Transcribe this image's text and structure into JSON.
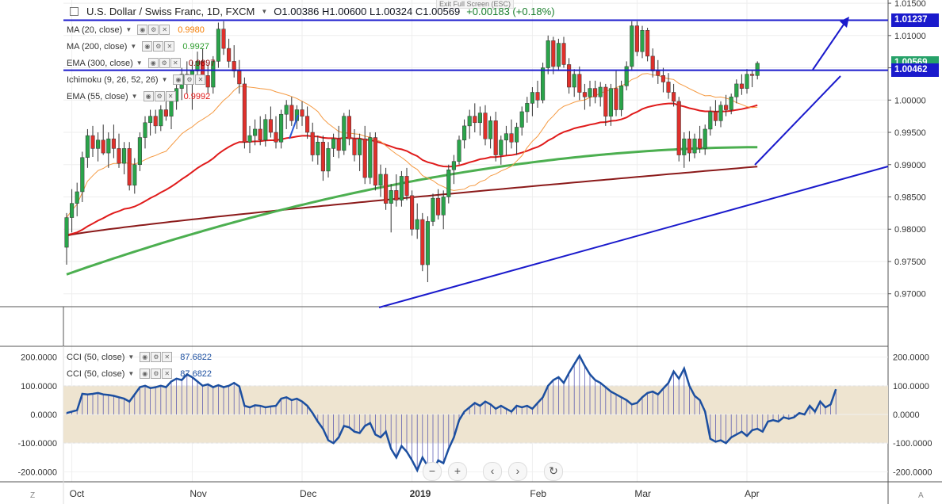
{
  "header": {
    "symbol": "U.S. Dollar / Swiss Franc, 1D, FXCM",
    "ohlc": "O1.00386  H1.00600  L1.00324  C1.00569",
    "change": "+0.00183 (+0.18%)",
    "exit_fullscreen": "Exit Full Screen (ESC)"
  },
  "indicators": [
    {
      "label": "MA (20, close)",
      "value": "0.9980",
      "color": "#f57c00"
    },
    {
      "label": "MA (200, close)",
      "value": "0.9927",
      "color": "#2e9e2e"
    },
    {
      "label": "EMA (300, close)",
      "value": "0.9897",
      "color": "#8b0000"
    },
    {
      "label": "Ichimoku (9, 26, 52, 26)",
      "value": "",
      "color": "#999999"
    },
    {
      "label": "EMA (55, close)",
      "value": "0.9992",
      "color": "#e01b1b"
    }
  ],
  "cci_legend": [
    {
      "label": "CCI (50, close)",
      "value": "87.6822"
    },
    {
      "label": "CCI (50, close)",
      "value": "87.6822"
    }
  ],
  "price_tags": [
    {
      "value": "1.01237",
      "color": "#1a1acc"
    },
    {
      "value": "1.00569",
      "color": "#26a269"
    },
    {
      "value": "1.00462",
      "color": "#1a1acc"
    }
  ],
  "corners": {
    "left": "Z",
    "right": "A"
  },
  "chart_data": {
    "type": "candlestick",
    "symbol": "USD/CHF",
    "interval": "1D",
    "price_axis": {
      "min": 0.968,
      "max": 1.0155,
      "ticks": [
        "0.97000",
        "0.97500",
        "0.98000",
        "0.98500",
        "0.99000",
        "0.99500",
        "1.00000",
        "1.00500",
        "1.01000",
        "1.01500"
      ]
    },
    "x_ticks": [
      {
        "label": "Oct",
        "i": 1
      },
      {
        "label": "Nov",
        "i": 24
      },
      {
        "label": "Dec",
        "i": 45
      },
      {
        "label": "2019",
        "i": 66
      },
      {
        "label": "Feb",
        "i": 89
      },
      {
        "label": "Mar",
        "i": 109
      },
      {
        "label": "Apr",
        "i": 130
      }
    ],
    "horizontal_levels": [
      1.01237,
      1.00462
    ],
    "candles": [
      {
        "o": 0.9772,
        "h": 0.9825,
        "l": 0.9745,
        "c": 0.9818
      },
      {
        "o": 0.9818,
        "h": 0.9862,
        "l": 0.9795,
        "c": 0.984
      },
      {
        "o": 0.984,
        "h": 0.9872,
        "l": 0.982,
        "c": 0.9858
      },
      {
        "o": 0.9858,
        "h": 0.992,
        "l": 0.9842,
        "c": 0.9911
      },
      {
        "o": 0.9911,
        "h": 0.9955,
        "l": 0.9895,
        "c": 0.9945
      },
      {
        "o": 0.9945,
        "h": 0.996,
        "l": 0.9912,
        "c": 0.9925
      },
      {
        "o": 0.9925,
        "h": 0.995,
        "l": 0.9905,
        "c": 0.9938
      },
      {
        "o": 0.9938,
        "h": 0.9962,
        "l": 0.9915,
        "c": 0.9918
      },
      {
        "o": 0.9918,
        "h": 0.995,
        "l": 0.9895,
        "c": 0.994
      },
      {
        "o": 0.994,
        "h": 0.9962,
        "l": 0.991,
        "c": 0.9925
      },
      {
        "o": 0.9925,
        "h": 0.9948,
        "l": 0.9895,
        "c": 0.9902
      },
      {
        "o": 0.9902,
        "h": 0.9935,
        "l": 0.9885,
        "c": 0.9925
      },
      {
        "o": 0.9925,
        "h": 0.9935,
        "l": 0.986,
        "c": 0.9868
      },
      {
        "o": 0.9868,
        "h": 0.991,
        "l": 0.9855,
        "c": 0.99
      },
      {
        "o": 0.99,
        "h": 0.995,
        "l": 0.989,
        "c": 0.9942
      },
      {
        "o": 0.9942,
        "h": 0.9975,
        "l": 0.9925,
        "c": 0.9965
      },
      {
        "o": 0.9965,
        "h": 0.9985,
        "l": 0.9945,
        "c": 0.9975
      },
      {
        "o": 0.9975,
        "h": 0.9985,
        "l": 0.9948,
        "c": 0.996
      },
      {
        "o": 0.996,
        "h": 0.9992,
        "l": 0.9952,
        "c": 0.9985
      },
      {
        "o": 0.9985,
        "h": 1.001,
        "l": 0.9968,
        "c": 0.9975
      },
      {
        "o": 0.9975,
        "h": 1.0005,
        "l": 0.9955,
        "c": 0.9998
      },
      {
        "o": 0.9998,
        "h": 1.003,
        "l": 0.9985,
        "c": 1.0018
      },
      {
        "o": 1.0018,
        "h": 1.005,
        "l": 1.0,
        "c": 1.004
      },
      {
        "o": 1.004,
        "h": 1.006,
        "l": 1.001,
        "c": 1.0025
      },
      {
        "o": 1.0025,
        "h": 1.006,
        "l": 0.9985,
        "c": 1.0045
      },
      {
        "o": 1.0045,
        "h": 1.0075,
        "l": 1.0025,
        "c": 1.006
      },
      {
        "o": 1.006,
        "h": 1.008,
        "l": 1.003,
        "c": 1.0038
      },
      {
        "o": 1.0038,
        "h": 1.0055,
        "l": 1.001,
        "c": 1.002
      },
      {
        "o": 1.002,
        "h": 1.0068,
        "l": 1.001,
        "c": 1.006
      },
      {
        "o": 1.006,
        "h": 1.012,
        "l": 1.005,
        "c": 1.011
      },
      {
        "o": 1.011,
        "h": 1.0122,
        "l": 1.007,
        "c": 1.008
      },
      {
        "o": 1.008,
        "h": 1.0095,
        "l": 1.005,
        "c": 1.006
      },
      {
        "o": 1.006,
        "h": 1.0085,
        "l": 1.0035,
        "c": 1.0045
      },
      {
        "o": 1.0045,
        "h": 1.0062,
        "l": 1.001,
        "c": 1.0025
      },
      {
        "o": 1.0025,
        "h": 1.0035,
        "l": 0.9925,
        "c": 0.9935
      },
      {
        "o": 0.9935,
        "h": 0.996,
        "l": 0.9918,
        "c": 0.9945
      },
      {
        "o": 0.9945,
        "h": 0.997,
        "l": 0.993,
        "c": 0.9955
      },
      {
        "o": 0.9955,
        "h": 0.9975,
        "l": 0.993,
        "c": 0.9938
      },
      {
        "o": 0.9938,
        "h": 0.9978,
        "l": 0.9928,
        "c": 0.997
      },
      {
        "o": 0.997,
        "h": 0.999,
        "l": 0.9942,
        "c": 0.995
      },
      {
        "o": 0.995,
        "h": 0.9975,
        "l": 0.9925,
        "c": 0.9935
      },
      {
        "o": 0.9935,
        "h": 0.9985,
        "l": 0.9925,
        "c": 0.9978
      },
      {
        "o": 0.9978,
        "h": 1.0,
        "l": 0.9955,
        "c": 0.9992
      },
      {
        "o": 0.9992,
        "h": 1.0005,
        "l": 0.996,
        "c": 0.9968
      },
      {
        "o": 0.9968,
        "h": 0.9992,
        "l": 0.9955,
        "c": 0.9985
      },
      {
        "o": 0.9985,
        "h": 0.9998,
        "l": 0.996,
        "c": 0.9975
      },
      {
        "o": 0.9975,
        "h": 0.999,
        "l": 0.994,
        "c": 0.995
      },
      {
        "o": 0.995,
        "h": 0.9965,
        "l": 0.9905,
        "c": 0.9915
      },
      {
        "o": 0.9915,
        "h": 0.9945,
        "l": 0.99,
        "c": 0.9935
      },
      {
        "o": 0.9935,
        "h": 0.9945,
        "l": 0.9875,
        "c": 0.989
      },
      {
        "o": 0.989,
        "h": 0.9935,
        "l": 0.988,
        "c": 0.9925
      },
      {
        "o": 0.9925,
        "h": 0.9948,
        "l": 0.9912,
        "c": 0.994
      },
      {
        "o": 0.994,
        "h": 0.996,
        "l": 0.991,
        "c": 0.9922
      },
      {
        "o": 0.9922,
        "h": 0.998,
        "l": 0.9915,
        "c": 0.9975
      },
      {
        "o": 0.9975,
        "h": 0.9985,
        "l": 0.993,
        "c": 0.994
      },
      {
        "o": 0.994,
        "h": 0.9955,
        "l": 0.9905,
        "c": 0.9915
      },
      {
        "o": 0.9915,
        "h": 0.9948,
        "l": 0.989,
        "c": 0.994
      },
      {
        "o": 0.994,
        "h": 0.996,
        "l": 0.987,
        "c": 0.988
      },
      {
        "o": 0.988,
        "h": 0.995,
        "l": 0.987,
        "c": 0.9942
      },
      {
        "o": 0.9942,
        "h": 0.995,
        "l": 0.986,
        "c": 0.9868
      },
      {
        "o": 0.9868,
        "h": 0.99,
        "l": 0.985,
        "c": 0.9885
      },
      {
        "o": 0.9885,
        "h": 0.9895,
        "l": 0.983,
        "c": 0.984
      },
      {
        "o": 0.984,
        "h": 0.987,
        "l": 0.9795,
        "c": 0.986
      },
      {
        "o": 0.986,
        "h": 0.9885,
        "l": 0.9835,
        "c": 0.9845
      },
      {
        "o": 0.9845,
        "h": 0.989,
        "l": 0.9835,
        "c": 0.9882
      },
      {
        "o": 0.9882,
        "h": 0.9895,
        "l": 0.9845,
        "c": 0.9852
      },
      {
        "o": 0.9852,
        "h": 0.986,
        "l": 0.979,
        "c": 0.98
      },
      {
        "o": 0.98,
        "h": 0.984,
        "l": 0.9785,
        "c": 0.9815
      },
      {
        "o": 0.9815,
        "h": 0.9825,
        "l": 0.9735,
        "c": 0.9745
      },
      {
        "o": 0.9745,
        "h": 0.982,
        "l": 0.9718,
        "c": 0.9812
      },
      {
        "o": 0.9812,
        "h": 0.9855,
        "l": 0.9805,
        "c": 0.9848
      },
      {
        "o": 0.9848,
        "h": 0.9862,
        "l": 0.9815,
        "c": 0.9822
      },
      {
        "o": 0.9822,
        "h": 0.986,
        "l": 0.98,
        "c": 0.985
      },
      {
        "o": 0.985,
        "h": 0.99,
        "l": 0.984,
        "c": 0.9892
      },
      {
        "o": 0.9892,
        "h": 0.9915,
        "l": 0.987,
        "c": 0.9905
      },
      {
        "o": 0.9905,
        "h": 0.9945,
        "l": 0.99,
        "c": 0.9938
      },
      {
        "o": 0.9938,
        "h": 0.997,
        "l": 0.9925,
        "c": 0.996
      },
      {
        "o": 0.996,
        "h": 0.9985,
        "l": 0.994,
        "c": 0.9975
      },
      {
        "o": 0.9975,
        "h": 0.9995,
        "l": 0.995,
        "c": 0.9965
      },
      {
        "o": 0.9965,
        "h": 0.999,
        "l": 0.9945,
        "c": 0.998
      },
      {
        "o": 0.998,
        "h": 0.9992,
        "l": 0.993,
        "c": 0.994
      },
      {
        "o": 0.994,
        "h": 0.9975,
        "l": 0.9925,
        "c": 0.9968
      },
      {
        "o": 0.9968,
        "h": 0.9982,
        "l": 0.9905,
        "c": 0.9915
      },
      {
        "o": 0.9915,
        "h": 0.9945,
        "l": 0.99,
        "c": 0.9938
      },
      {
        "o": 0.9938,
        "h": 0.996,
        "l": 0.9915,
        "c": 0.9948
      },
      {
        "o": 0.9948,
        "h": 0.997,
        "l": 0.9925,
        "c": 0.9935
      },
      {
        "o": 0.9935,
        "h": 0.9965,
        "l": 0.9915,
        "c": 0.9958
      },
      {
        "o": 0.9958,
        "h": 0.999,
        "l": 0.9945,
        "c": 0.9982
      },
      {
        "o": 0.9982,
        "h": 1.0005,
        "l": 0.9965,
        "c": 0.9995
      },
      {
        "o": 0.9995,
        "h": 1.002,
        "l": 0.9975,
        "c": 1.0012
      },
      {
        "o": 1.0012,
        "h": 1.003,
        "l": 0.9988,
        "c": 1.0
      },
      {
        "o": 1.0,
        "h": 1.0058,
        "l": 0.9995,
        "c": 1.005
      },
      {
        "o": 1.005,
        "h": 1.01,
        "l": 1.004,
        "c": 1.0092
      },
      {
        "o": 1.0092,
        "h": 1.0098,
        "l": 1.004,
        "c": 1.0052
      },
      {
        "o": 1.0052,
        "h": 1.0095,
        "l": 1.0045,
        "c": 1.0088
      },
      {
        "o": 1.0088,
        "h": 1.0098,
        "l": 1.005,
        "c": 1.0055
      },
      {
        "o": 1.0055,
        "h": 1.0065,
        "l": 1.001,
        "c": 1.002
      },
      {
        "o": 1.002,
        "h": 1.0048,
        "l": 1.0005,
        "c": 1.004
      },
      {
        "o": 1.004,
        "h": 1.0052,
        "l": 1.0,
        "c": 1.0012
      },
      {
        "o": 1.0012,
        "h": 1.0025,
        "l": 0.9985,
        "c": 1.0005
      },
      {
        "o": 1.0005,
        "h": 1.003,
        "l": 0.999,
        "c": 1.0018
      },
      {
        "o": 1.0018,
        "h": 1.003,
        "l": 0.9995,
        "c": 1.0005
      },
      {
        "o": 1.0005,
        "h": 1.0028,
        "l": 0.999,
        "c": 1.002
      },
      {
        "o": 1.002,
        "h": 1.0025,
        "l": 0.996,
        "c": 0.9975
      },
      {
        "o": 0.9975,
        "h": 1.0025,
        "l": 0.996,
        "c": 1.0018
      },
      {
        "o": 1.0018,
        "h": 1.0045,
        "l": 0.9975,
        "c": 0.9985
      },
      {
        "o": 0.9985,
        "h": 1.003,
        "l": 0.9975,
        "c": 1.0022
      },
      {
        "o": 1.0022,
        "h": 1.006,
        "l": 1.0015,
        "c": 1.0052
      },
      {
        "o": 1.0052,
        "h": 1.0122,
        "l": 1.0045,
        "c": 1.0115
      },
      {
        "o": 1.0115,
        "h": 1.0122,
        "l": 1.0068,
        "c": 1.0075
      },
      {
        "o": 1.0075,
        "h": 1.0115,
        "l": 1.0065,
        "c": 1.0108
      },
      {
        "o": 1.0108,
        "h": 1.0112,
        "l": 1.006,
        "c": 1.0068
      },
      {
        "o": 1.0068,
        "h": 1.008,
        "l": 1.0035,
        "c": 1.0045
      },
      {
        "o": 1.0045,
        "h": 1.0062,
        "l": 1.0025,
        "c": 1.0038
      },
      {
        "o": 1.0038,
        "h": 1.005,
        "l": 1.0012,
        "c": 1.0028
      },
      {
        "o": 1.0028,
        "h": 1.0042,
        "l": 1.0002,
        "c": 1.0012
      },
      {
        "o": 1.0012,
        "h": 1.0025,
        "l": 0.999,
        "c": 0.9998
      },
      {
        "o": 0.9998,
        "h": 1.0005,
        "l": 0.9905,
        "c": 0.9915
      },
      {
        "o": 0.9915,
        "h": 0.995,
        "l": 0.9895,
        "c": 0.994
      },
      {
        "o": 0.994,
        "h": 0.9952,
        "l": 0.9905,
        "c": 0.9918
      },
      {
        "o": 0.9918,
        "h": 0.9948,
        "l": 0.991,
        "c": 0.994
      },
      {
        "o": 0.994,
        "h": 0.996,
        "l": 0.9918,
        "c": 0.9925
      },
      {
        "o": 0.9925,
        "h": 0.9962,
        "l": 0.9915,
        "c": 0.9955
      },
      {
        "o": 0.9955,
        "h": 0.999,
        "l": 0.9945,
        "c": 0.9982
      },
      {
        "o": 0.9982,
        "h": 1.0,
        "l": 0.996,
        "c": 0.9968
      },
      {
        "o": 0.9968,
        "h": 0.9998,
        "l": 0.9958,
        "c": 0.9992
      },
      {
        "o": 0.9992,
        "h": 1.0008,
        "l": 0.9975,
        "c": 0.9985
      },
      {
        "o": 0.9985,
        "h": 1.001,
        "l": 0.9978,
        "c": 1.0005
      },
      {
        "o": 1.0005,
        "h": 1.0032,
        "l": 0.9995,
        "c": 1.0025
      },
      {
        "o": 1.0025,
        "h": 1.004,
        "l": 1.0008,
        "c": 1.0018
      },
      {
        "o": 1.0018,
        "h": 1.0048,
        "l": 1.001,
        "c": 1.004
      },
      {
        "o": 1.004,
        "h": 1.0045,
        "l": 1.002,
        "c": 1.0038
      },
      {
        "o": 1.0038,
        "h": 1.006,
        "l": 1.0032,
        "c": 1.0057
      }
    ],
    "cci": [
      5,
      10,
      15,
      72,
      70,
      72,
      75,
      70,
      68,
      65,
      60,
      55,
      45,
      70,
      95,
      100,
      92,
      95,
      100,
      95,
      115,
      125,
      120,
      140,
      130,
      115,
      100,
      105,
      95,
      102,
      95,
      100,
      110,
      98,
      30,
      25,
      32,
      30,
      25,
      28,
      30,
      55,
      60,
      50,
      55,
      45,
      30,
      5,
      -25,
      -50,
      -90,
      -100,
      -80,
      -40,
      -45,
      -60,
      -65,
      -40,
      -30,
      -70,
      -80,
      -60,
      -120,
      -150,
      -110,
      -130,
      -160,
      -195,
      -150,
      -180,
      -200,
      -160,
      -170,
      -120,
      -80,
      -20,
      10,
      25,
      40,
      30,
      45,
      35,
      20,
      30,
      20,
      10,
      30,
      25,
      30,
      20,
      40,
      60,
      100,
      120,
      130,
      110,
      145,
      175,
      205,
      170,
      140,
      120,
      110,
      95,
      80,
      70,
      60,
      50,
      35,
      40,
      60,
      75,
      80,
      70,
      90,
      110,
      150,
      125,
      160,
      100,
      65,
      50,
      10,
      -85,
      -95,
      -90,
      -100,
      -80,
      -70,
      -60,
      -75,
      -55,
      -50,
      -60,
      -25,
      -20,
      -25,
      -10,
      -15,
      -10,
      5,
      0,
      30,
      10,
      45,
      25,
      35,
      88
    ],
    "indicator_values": {
      "MA (20, close)": 0.998,
      "MA (200, close)": 0.9927,
      "EMA (300, close)": 0.9897,
      "EMA (55, close)": 0.9992,
      "CCI (50, close)": 87.6822
    },
    "cci_axis": {
      "ticks": [
        "200.0000",
        "100.0000",
        "0.0000",
        "-100.0000",
        "-200.0000"
      ],
      "band": [
        -100,
        100
      ]
    }
  }
}
